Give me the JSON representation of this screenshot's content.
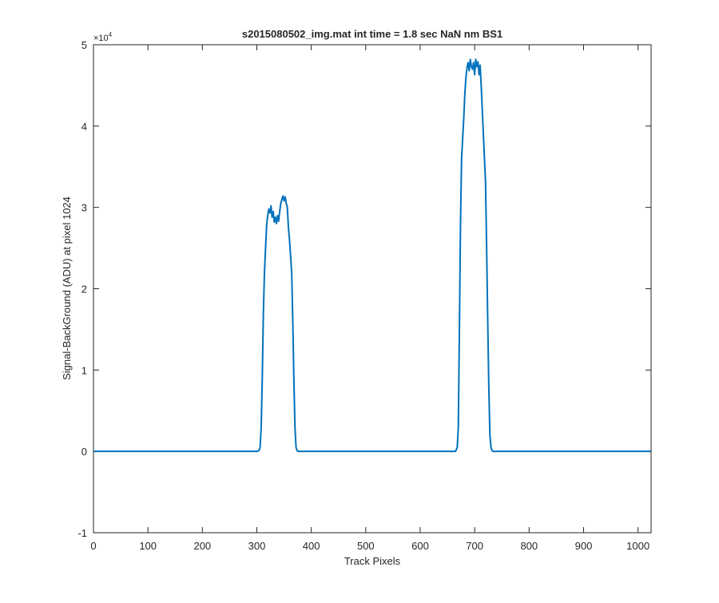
{
  "chart_data": {
    "type": "line",
    "title": "s2015080502_img.mat int time = 1.8 sec  NaN nm BS1",
    "xlabel": "Track Pixels",
    "ylabel": "Signal-BackGround (ADU) at pixel 1024",
    "xlim": [
      0,
      1024
    ],
    "ylim": [
      -1,
      5
    ],
    "y_exponent_label": "×10",
    "y_exponent_power": "4",
    "y_scale": 10000,
    "x_ticks": [
      0,
      100,
      200,
      300,
      400,
      500,
      600,
      700,
      800,
      900,
      1000
    ],
    "y_ticks": [
      -1,
      0,
      1,
      2,
      3,
      4,
      5
    ],
    "grid": false,
    "box": true,
    "line_color": "#0072BD",
    "series": [
      {
        "x": [
          0,
          100,
          200,
          300,
          304,
          306,
          308,
          310,
          312,
          314,
          316,
          318,
          320,
          322,
          324,
          326,
          328,
          330,
          332,
          334,
          336,
          338,
          340,
          342,
          344,
          346,
          348,
          350,
          352,
          354,
          356,
          358,
          360,
          362,
          364,
          366,
          368,
          370,
          372,
          374,
          376,
          400,
          500,
          600,
          665,
          668,
          670,
          672,
          674,
          676,
          678,
          680,
          682,
          684,
          686,
          688,
          690,
          692,
          694,
          696,
          698,
          700,
          702,
          704,
          706,
          708,
          710,
          712,
          714,
          716,
          718,
          720,
          722,
          724,
          726,
          728,
          730,
          732,
          734,
          740,
          800,
          900,
          1024
        ],
        "y": [
          0,
          0,
          0,
          0,
          0.01,
          0.05,
          0.3,
          0.9,
          1.7,
          2.2,
          2.5,
          2.78,
          2.9,
          2.98,
          2.93,
          3.02,
          2.88,
          2.95,
          2.82,
          2.88,
          2.8,
          2.9,
          2.83,
          2.95,
          3.05,
          3.1,
          3.14,
          3.08,
          3.13,
          3.05,
          3.0,
          2.75,
          2.6,
          2.4,
          2.2,
          1.6,
          0.9,
          0.3,
          0.05,
          0.01,
          0,
          0,
          0,
          0,
          0,
          0.05,
          0.3,
          1.5,
          2.8,
          3.6,
          3.85,
          4.1,
          4.4,
          4.6,
          4.72,
          4.78,
          4.68,
          4.82,
          4.73,
          4.7,
          4.78,
          4.63,
          4.82,
          4.73,
          4.79,
          4.63,
          4.75,
          4.5,
          4.2,
          3.9,
          3.6,
          3.3,
          2.5,
          1.6,
          0.8,
          0.2,
          0.05,
          0.01,
          0,
          0,
          0,
          0,
          0
        ]
      }
    ]
  }
}
